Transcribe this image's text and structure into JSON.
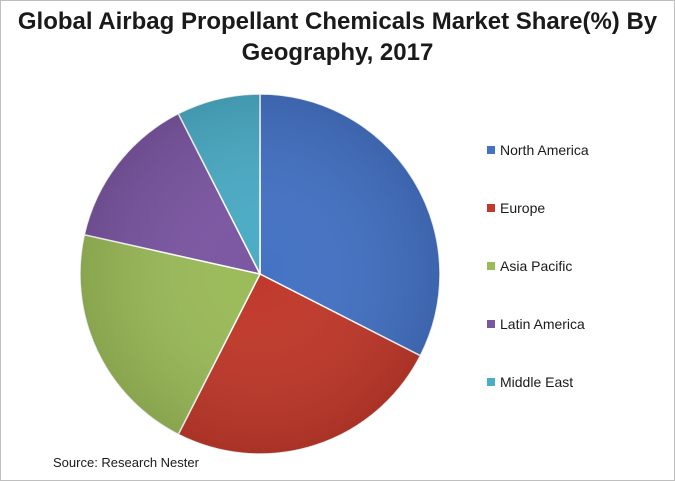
{
  "title_line1": "Global Airbag Propellant Chemicals Market Share(%) By",
  "title_line2": "Geography, 2017",
  "source": "Source: Research Nester",
  "chart_data": {
    "type": "pie",
    "title": "Global Airbag Propellant Chemicals Market Share(%) By Geography, 2017",
    "categories": [
      "North America",
      "Europe",
      "Asia Pacific",
      "Latin America",
      "Middle East"
    ],
    "values": [
      32.5,
      25,
      21,
      14,
      7.5
    ],
    "colors": [
      "#4472c4",
      "#c0392b",
      "#9bbb59",
      "#7b56a2",
      "#4bacc6"
    ],
    "legend_position": "right"
  }
}
